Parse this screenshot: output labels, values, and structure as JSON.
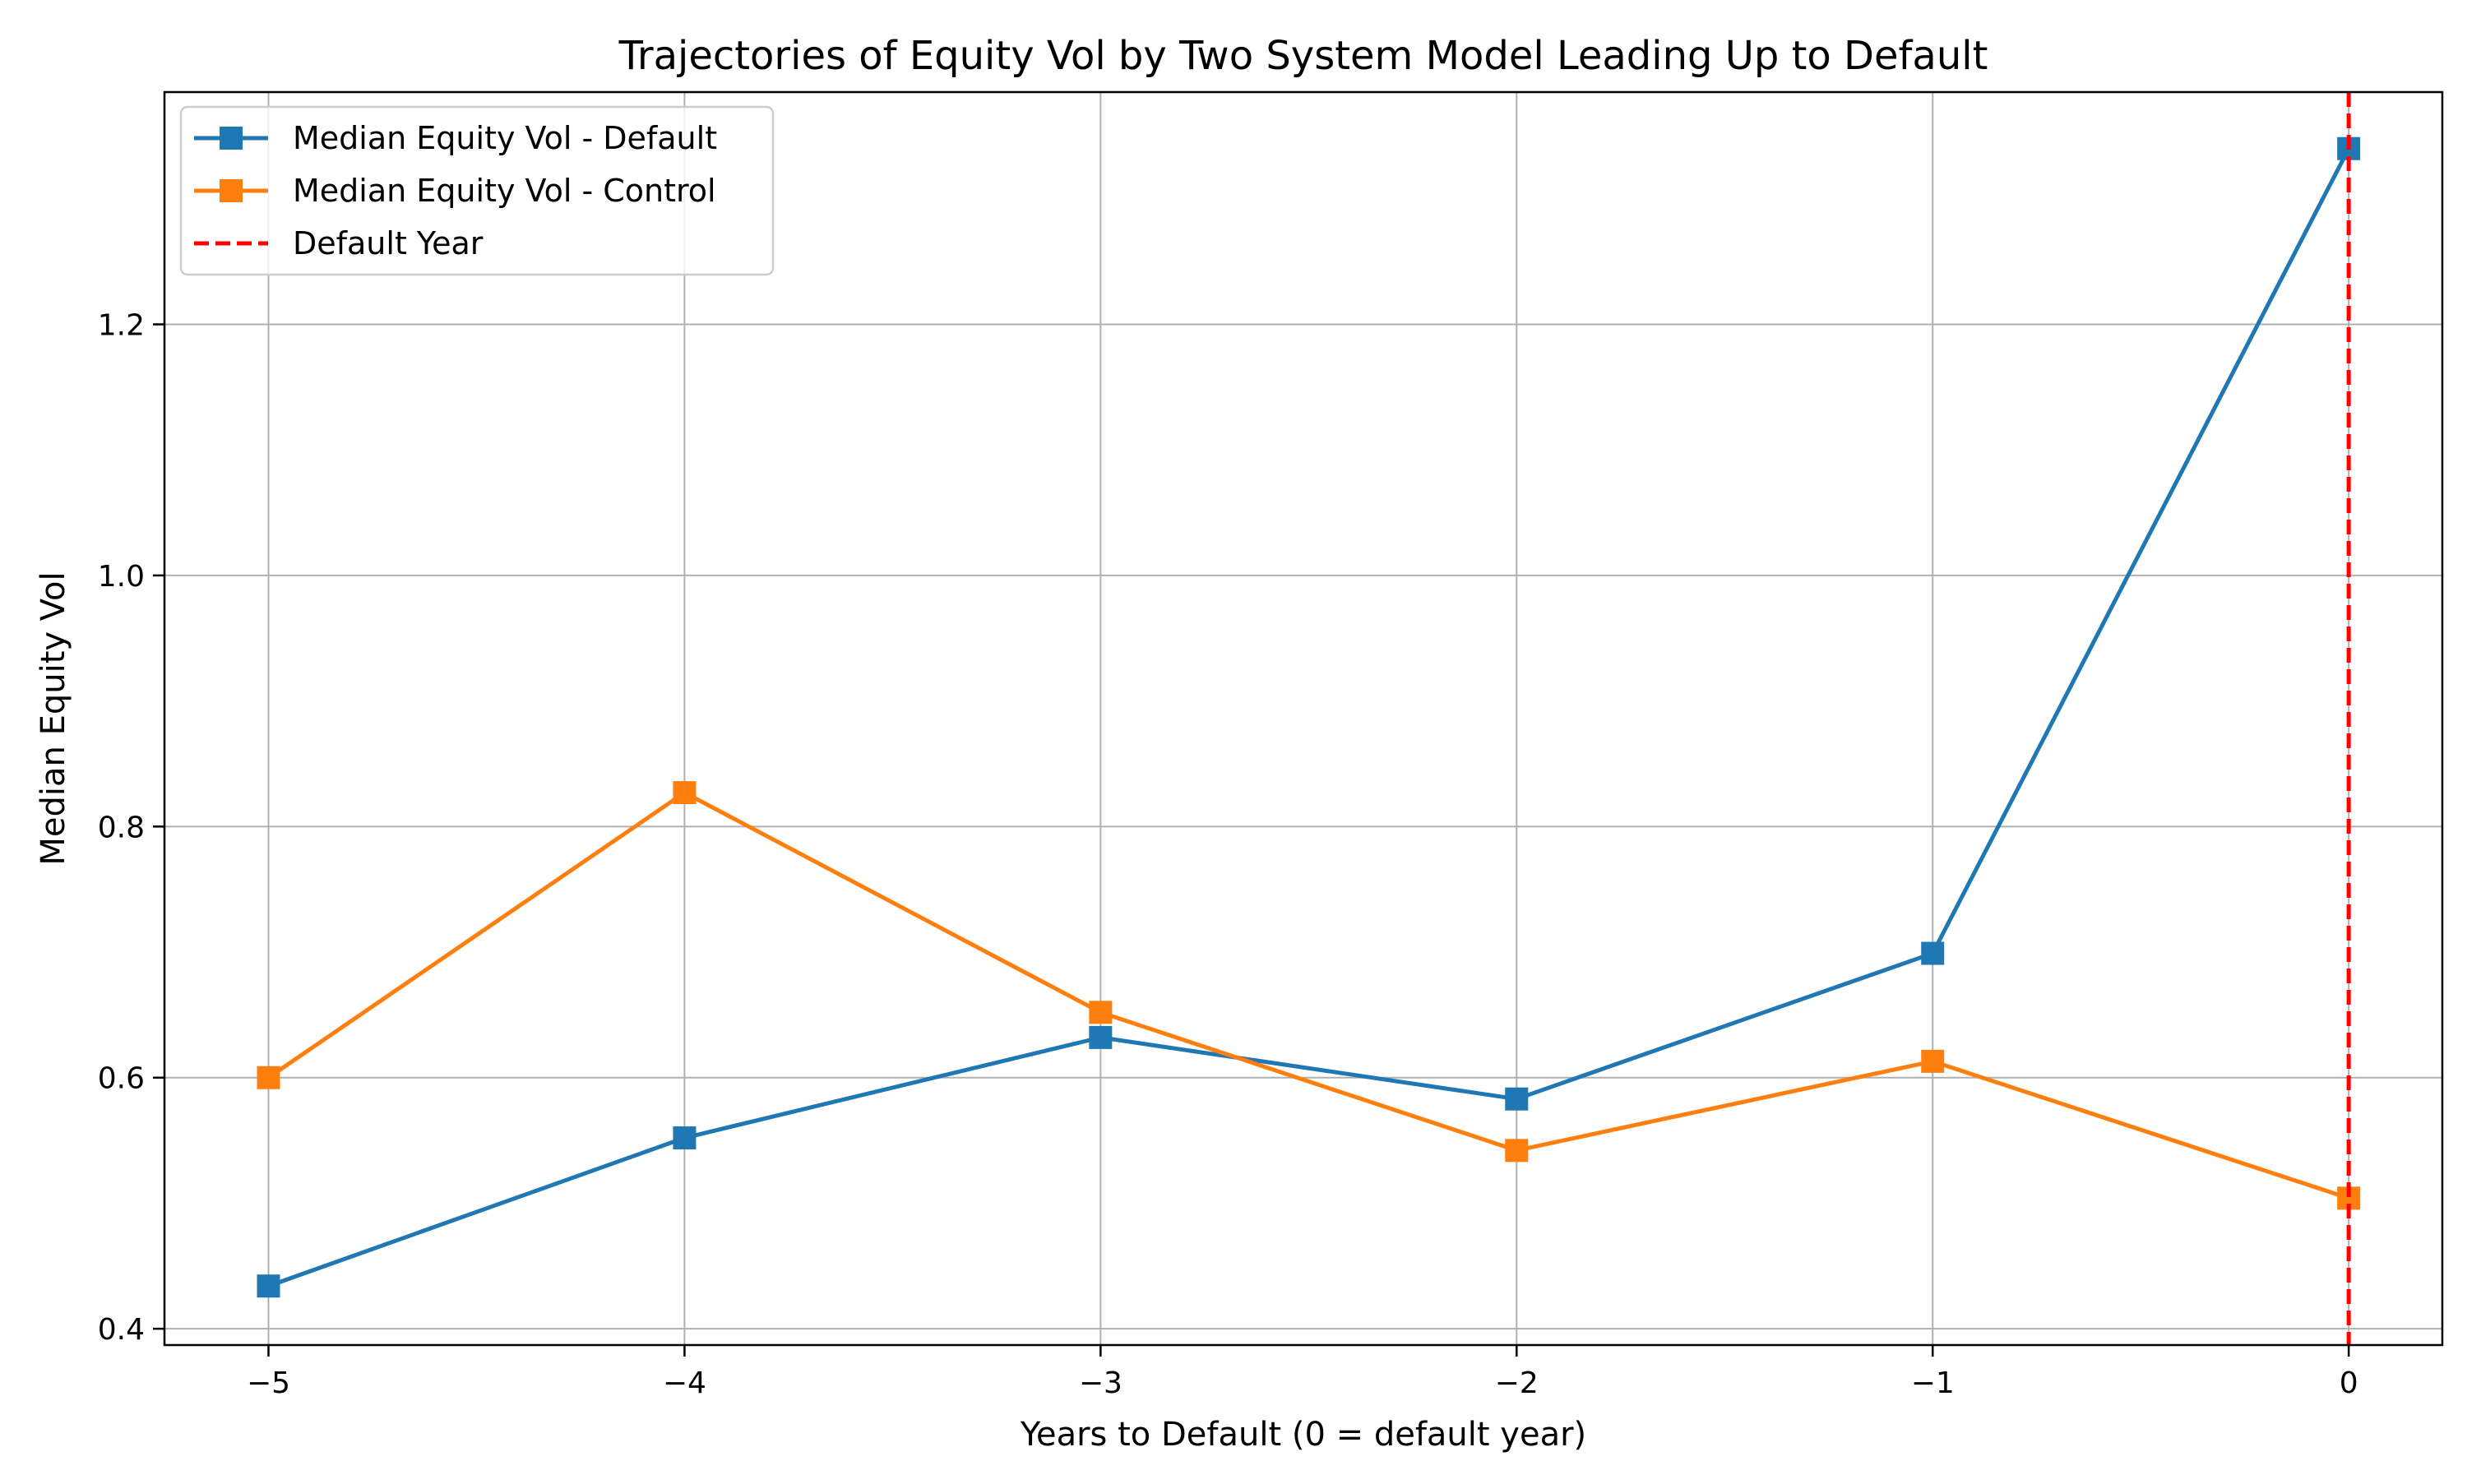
{
  "chart_data": {
    "type": "line",
    "title": "Trajectories of Equity Vol by Two System Model Leading Up to Default",
    "xlabel": "Years to Default (0 = default year)",
    "ylabel": "Median Equity Vol",
    "x": [
      -5,
      -4,
      -3,
      -2,
      -1,
      0
    ],
    "xticks": [
      -5,
      -4,
      -3,
      -2,
      -1,
      0
    ],
    "xtick_labels": [
      "−5",
      "−4",
      "−3",
      "−2",
      "−1",
      "0"
    ],
    "yticks": [
      0.4,
      0.6,
      0.8,
      1.0,
      1.2
    ],
    "ytick_labels": [
      "0.4",
      "0.6",
      "0.8",
      "1.0",
      "1.2"
    ],
    "xlim": [
      -5.25,
      0.225
    ],
    "ylim": [
      0.387,
      1.385
    ],
    "grid": true,
    "legend_position": "upper-left",
    "series": [
      {
        "name": "Median Equity Vol - Default",
        "values": [
          0.434,
          0.552,
          0.632,
          0.583,
          0.699,
          1.34
        ],
        "color": "#1f77b4",
        "marker": "square"
      },
      {
        "name": "Median Equity Vol - Control",
        "values": [
          0.6,
          0.827,
          0.652,
          0.542,
          0.613,
          0.504
        ],
        "color": "#ff7f0e",
        "marker": "square"
      }
    ],
    "reference_lines": [
      {
        "name": "Default Year",
        "x": 0,
        "color": "#ff0000",
        "style": "dashed"
      }
    ]
  }
}
